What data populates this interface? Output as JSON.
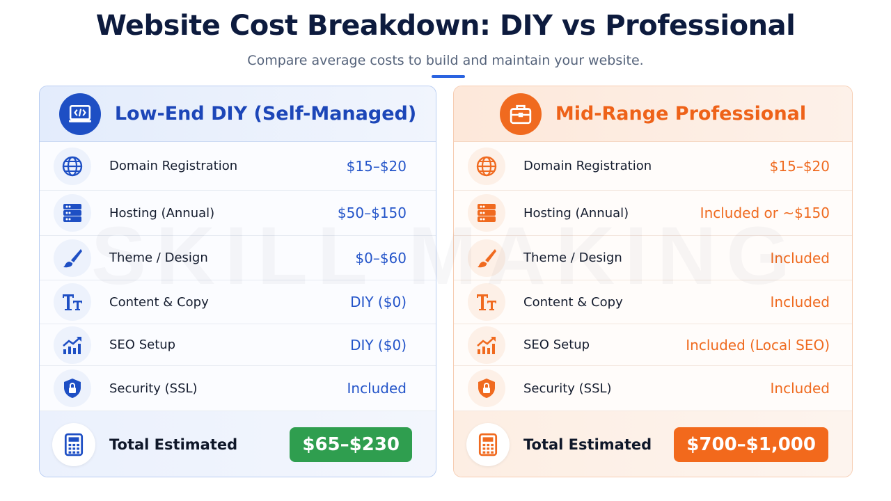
{
  "header": {
    "title": "Website Cost Breakdown: DIY vs Professional",
    "subtitle": "Compare average costs to build and maintain your website."
  },
  "watermark": "SKILL MAKING",
  "cards": [
    {
      "title": "Low-End DIY (Self-Managed)",
      "rows": [
        {
          "label": "Domain Registration",
          "value": "$15–$20"
        },
        {
          "label": "Hosting (Annual)",
          "value": "$50–$150"
        },
        {
          "label": "Theme / Design",
          "value": "$0–$60"
        },
        {
          "label": "Content & Copy",
          "value": "DIY ($0)"
        },
        {
          "label": "SEO Setup",
          "value": "DIY ($0)"
        },
        {
          "label": "Security (SSL)",
          "value": "Included"
        }
      ],
      "total_label": "Total Estimated",
      "total_value": "$65–$230"
    },
    {
      "title": "Mid-Range Professional",
      "rows": [
        {
          "label": "Domain Registration",
          "value": "$15–$20"
        },
        {
          "label": "Hosting (Annual)",
          "value": "Included or ~$150"
        },
        {
          "label": "Theme / Design",
          "value": "Included"
        },
        {
          "label": "Content & Copy",
          "value": "Included"
        },
        {
          "label": "SEO Setup",
          "value": "Included (Local SEO)"
        },
        {
          "label": "Security (SSL)",
          "value": "Included"
        }
      ],
      "total_label": "Total Estimated",
      "total_value": "$700–$1,000"
    }
  ]
}
